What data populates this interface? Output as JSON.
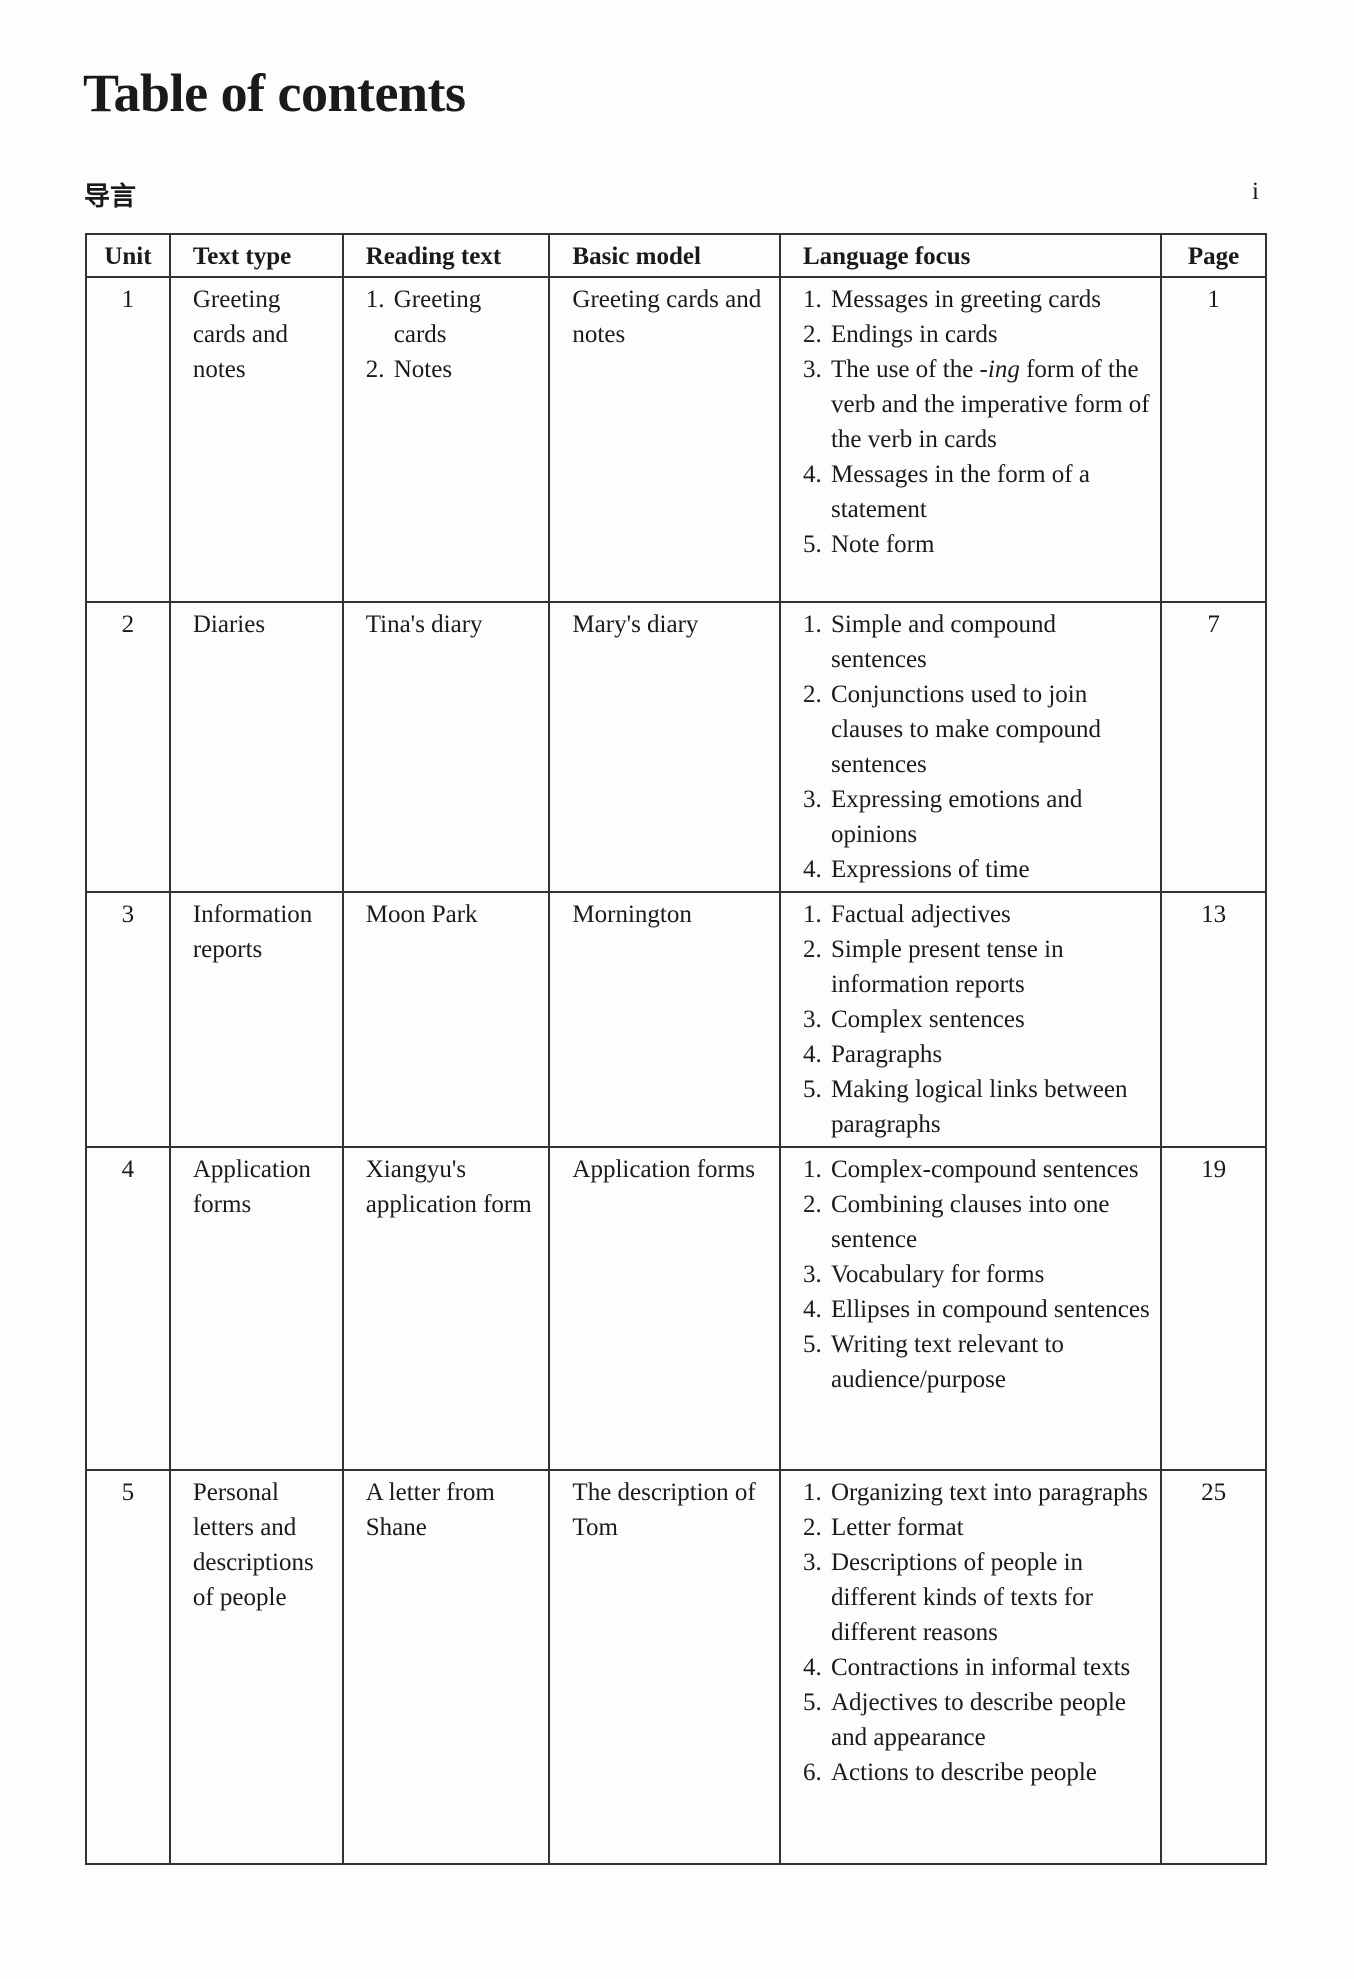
{
  "title": "Table of contents",
  "intro": {
    "label": "导言",
    "page": "i"
  },
  "headers": [
    "Unit",
    "Text type",
    "Reading text",
    "Basic model",
    "Language focus",
    "Page"
  ],
  "rows": [
    {
      "unit": "1",
      "text_type": "Greeting cards and notes",
      "reading_text": [
        "Greeting cards",
        "Notes"
      ],
      "basic_model": "Greeting cards and notes",
      "focus": [
        "Messages in greeting cards",
        "Endings in cards",
        "The use of the -ing form of the verb and the imperative form of the verb in cards",
        "Messages in the form of a statement",
        "Note form"
      ],
      "page": "1"
    },
    {
      "unit": "2",
      "text_type": "Diaries",
      "reading_text": [
        "Tina's diary"
      ],
      "basic_model": "Mary's diary",
      "focus": [
        "Simple and compound sentences",
        "Conjunctions used to join clauses to make compound sentences",
        "Expressing emotions and opinions",
        "Expressions of time"
      ],
      "page": "7"
    },
    {
      "unit": "3",
      "text_type": "Information reports",
      "reading_text": [
        "Moon Park"
      ],
      "basic_model": "Mornington",
      "focus": [
        "Factual adjectives",
        "Simple present tense in information reports",
        "Complex sentences",
        "Paragraphs",
        "Making logical links between paragraphs"
      ],
      "page": "13"
    },
    {
      "unit": "4",
      "text_type": "Application forms",
      "reading_text": [
        "Xiangyu's application form"
      ],
      "basic_model": "Application forms",
      "focus": [
        "Complex-compound sentences",
        "Combining clauses into one sentence",
        "Vocabulary for forms",
        "Ellipses in compound sentences",
        "Writing text relevant to audience/purpose"
      ],
      "page": "19"
    },
    {
      "unit": "5",
      "text_type": "Personal letters and descriptions of people",
      "reading_text": [
        "A letter from Shane"
      ],
      "basic_model": "The description of Tom",
      "focus": [
        "Organizing text into paragraphs",
        "Letter format",
        "Descriptions of people in different kinds of texts for different reasons",
        "Contractions in informal texts",
        "Adjectives to describe people and appearance",
        "Actions to describe people"
      ],
      "page": "25"
    }
  ]
}
